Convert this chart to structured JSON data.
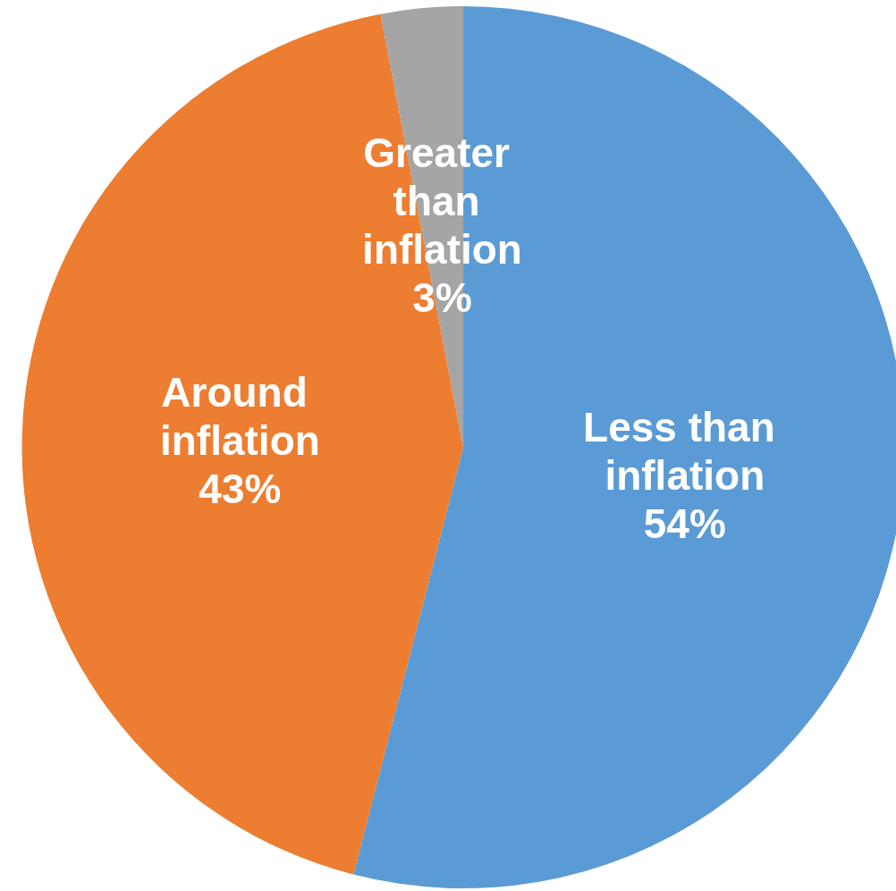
{
  "chart_data": {
    "type": "pie",
    "categories": [
      "Less than inflation",
      "Around inflation",
      "Greater than inflation"
    ],
    "values": [
      54,
      43,
      3
    ],
    "value_labels": [
      "54%",
      "43%",
      "3%"
    ],
    "colors": [
      "#5b9bd5",
      "#ed7d31",
      "#a5a5a5"
    ],
    "legend": false
  }
}
